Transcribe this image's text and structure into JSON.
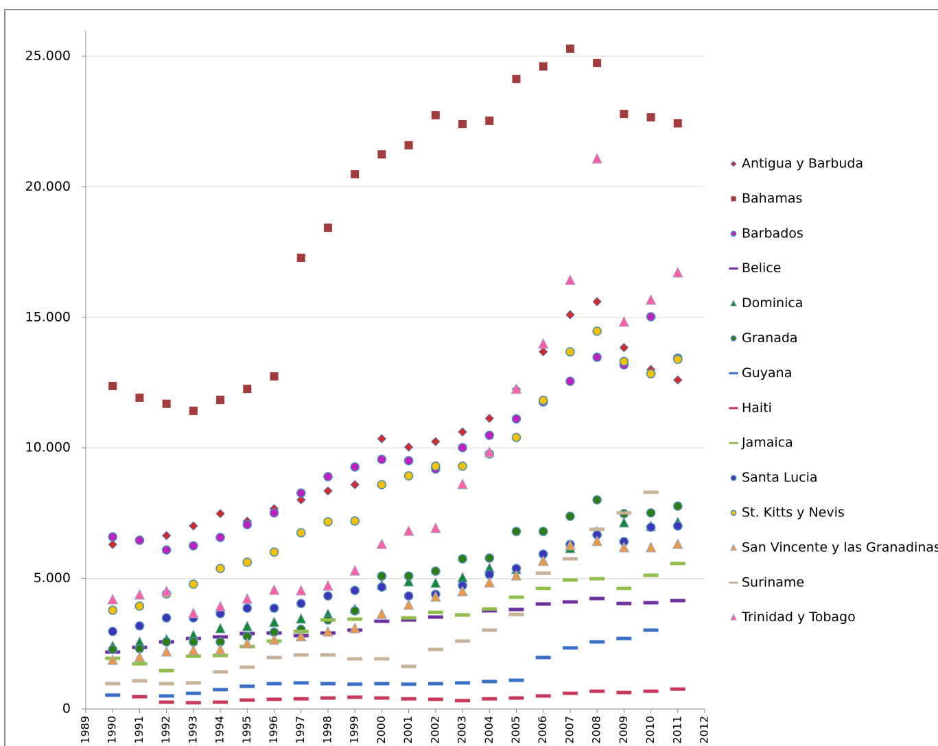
{
  "chart_data": {
    "type": "scatter",
    "x": [
      1990,
      1991,
      1992,
      1993,
      1994,
      1995,
      1996,
      1997,
      1998,
      1999,
      2000,
      2001,
      2002,
      2003,
      2004,
      2005,
      2006,
      2007,
      2008,
      2009,
      2010,
      2011
    ],
    "xlim": [
      1989,
      2012
    ],
    "xticks": [
      1989,
      1990,
      1991,
      1992,
      1993,
      1994,
      1995,
      1996,
      1997,
      1998,
      1999,
      2000,
      2001,
      2002,
      2003,
      2004,
      2005,
      2006,
      2007,
      2008,
      2009,
      2010,
      2011,
      2012
    ],
    "ylim": [
      0,
      25000
    ],
    "yticks": [
      0,
      {
        "value": 5000,
        "label": "5.000"
      },
      {
        "value": 10000,
        "label": "10.000"
      },
      {
        "value": 15000,
        "label": "15.000"
      },
      {
        "value": 20000,
        "label": "20.000"
      },
      {
        "value": 25000,
        "label": "25.000"
      }
    ],
    "grid": true,
    "legend": "right",
    "series": [
      {
        "name": "Antigua y Barbuda",
        "color": "#d42a2a",
        "marker": "diamond",
        "values": [
          6300,
          6490,
          6640,
          7010,
          7480,
          7190,
          7670,
          8010,
          8350,
          8590,
          10350,
          10030,
          10240,
          10610,
          11130,
          12240,
          13680,
          15100,
          15600,
          13840,
          13000,
          12600
        ]
      },
      {
        "name": "Bahamas",
        "color": "#a33b3b",
        "marker": "square",
        "values": [
          12370,
          11920,
          11690,
          11420,
          11840,
          12260,
          12740,
          17280,
          18430,
          20480,
          21240,
          21590,
          22740,
          22400,
          22530,
          24130,
          24610,
          25290,
          24740,
          22790,
          22660,
          22430
        ]
      },
      {
        "name": "Barbados",
        "color": "#c020c0",
        "marker": "circle",
        "values": [
          6590,
          6460,
          6090,
          6250,
          6570,
          7060,
          7510,
          8270,
          8900,
          9270,
          9560,
          9510,
          9190,
          10010,
          10480,
          11110,
          11760,
          12550,
          13470,
          13180,
          15020,
          13440
        ]
      },
      {
        "name": "Belice",
        "color": "#7030a0",
        "marker": "dash",
        "values": [
          2180,
          2360,
          2570,
          2700,
          2760,
          2890,
          2910,
          2810,
          2910,
          3020,
          3360,
          3410,
          3520,
          3600,
          3760,
          3810,
          4020,
          4100,
          4230,
          4040,
          4070,
          4150
        ]
      },
      {
        "name": "Dominica",
        "color": "#118a3a",
        "marker": "triangle",
        "values": [
          2390,
          2550,
          2650,
          2810,
          3070,
          3150,
          3310,
          3440,
          3620,
          3810,
          4730,
          4860,
          4810,
          5020,
          5380,
          5330,
          5670,
          6140,
          6780,
          7120,
          6990,
          7140
        ]
      },
      {
        "name": "Granada",
        "color": "#2e7d11",
        "marker": "circle",
        "values": [
          2280,
          2310,
          2570,
          2570,
          2570,
          2780,
          2940,
          3050,
          3410,
          3760,
          5090,
          5090,
          5280,
          5750,
          5780,
          6800,
          6800,
          7380,
          8010,
          7480,
          7510,
          7770
        ]
      },
      {
        "name": "Guyana",
        "color": "#3a6fc8",
        "marker": "dash",
        "values": [
          530,
          null,
          500,
          600,
          740,
          870,
          970,
          1000,
          970,
          950,
          970,
          950,
          970,
          1000,
          1050,
          1100,
          1970,
          2340,
          2570,
          2700,
          3020,
          null
        ]
      },
      {
        "name": "Haiti",
        "color": "#c8385a",
        "marker": "dash",
        "values": [
          null,
          470,
          260,
          240,
          260,
          340,
          370,
          390,
          420,
          450,
          420,
          390,
          370,
          320,
          390,
          420,
          500,
          600,
          680,
          630,
          680,
          760
        ]
      },
      {
        "name": "Jamaica",
        "color": "#8fbf4a",
        "marker": "dash",
        "values": [
          1940,
          1730,
          1470,
          2020,
          2050,
          2390,
          2600,
          2970,
          3410,
          3440,
          null,
          3490,
          3700,
          3600,
          3830,
          4280,
          4620,
          4940,
          4990,
          4620,
          5120,
          5570
        ]
      },
      {
        "name": "Santa Lucia",
        "color": "#3a35b8",
        "marker": "circle",
        "values": [
          2970,
          3180,
          3490,
          3490,
          3650,
          3860,
          3860,
          4040,
          4330,
          4540,
          4670,
          4330,
          4390,
          4730,
          5150,
          5380,
          5930,
          6300,
          6670,
          6410,
          6960,
          7010
        ]
      },
      {
        "name": "St. Kitts y Nevis",
        "color": "#f2c100",
        "marker": "circle",
        "values": [
          3780,
          3940,
          4410,
          4780,
          5380,
          5620,
          6010,
          6750,
          7170,
          7200,
          8590,
          8930,
          9300,
          9300,
          9770,
          10400,
          11820,
          13680,
          14470,
          13310,
          12840,
          13390
        ]
      },
      {
        "name": "San Vincente y las Granadinas",
        "color": "#e89a4a",
        "marker": "triangle",
        "values": [
          1860,
          1970,
          2180,
          2230,
          2260,
          2490,
          2630,
          2760,
          2940,
          3070,
          3620,
          3970,
          4280,
          4490,
          4830,
          5090,
          5650,
          6250,
          6410,
          6170,
          6170,
          6300
        ]
      },
      {
        "name": "Suriname",
        "color": "#c8b39a",
        "marker": "dash",
        "values": [
          970,
          1080,
          970,
          1000,
          1420,
          1600,
          1970,
          2070,
          2070,
          1920,
          1920,
          1630,
          2280,
          2600,
          3020,
          3620,
          5200,
          5750,
          6880,
          7510,
          8300,
          null
        ]
      },
      {
        "name": "Trinidad y Tobago",
        "color": "#ff5fa8",
        "marker": "triangle",
        "values": [
          4180,
          4360,
          4490,
          3650,
          3910,
          4200,
          4540,
          4520,
          4700,
          5280,
          6300,
          6800,
          6910,
          8590,
          9820,
          12240,
          13970,
          16410,
          21060,
          14810,
          15650,
          16700
        ]
      }
    ]
  }
}
